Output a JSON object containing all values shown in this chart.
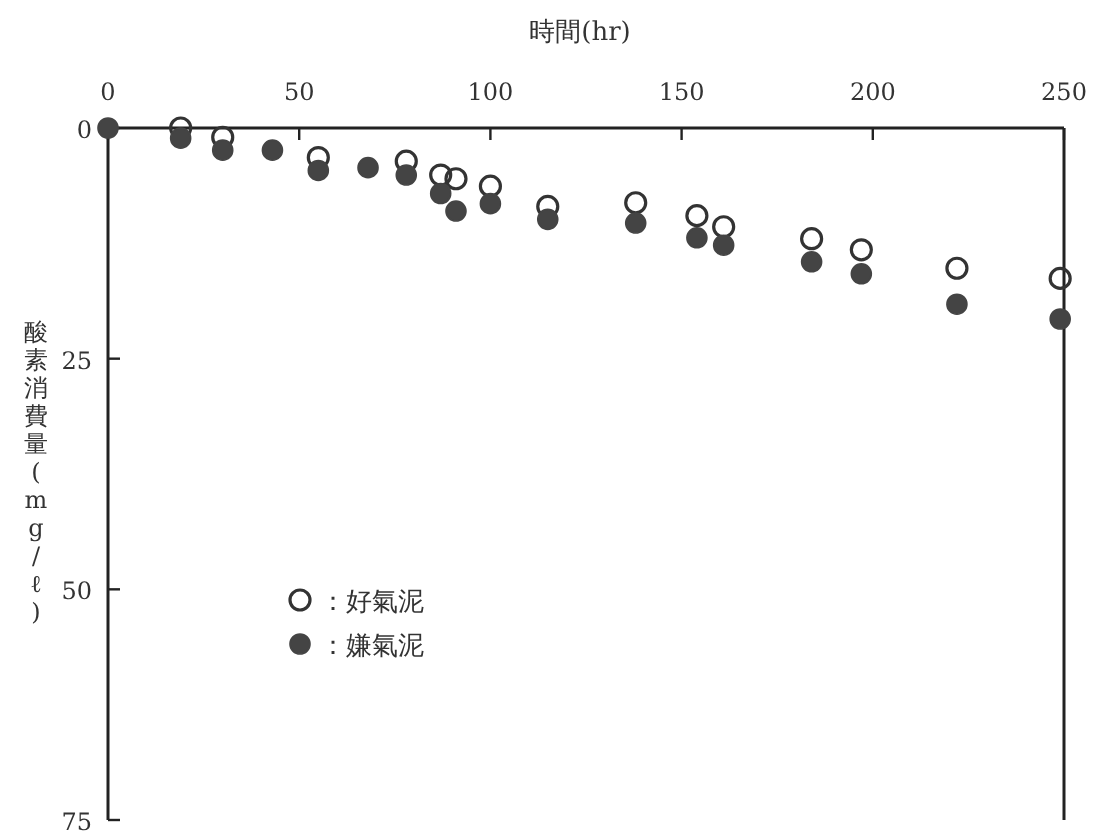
{
  "chart_data": {
    "type": "scatter",
    "xlabel": "時間(hr)",
    "ylabel": "酸素消費量(mg/ℓ)",
    "x": [
      0,
      19,
      30,
      43,
      55,
      68,
      78,
      87,
      91,
      100,
      115,
      138,
      154,
      161,
      184,
      197,
      222,
      249
    ],
    "series": [
      {
        "name": "：好氣泥",
        "color": "#333333",
        "values": [
          null,
          0,
          1.0,
          null,
          3.2,
          null,
          3.6,
          5.1,
          5.5,
          6.3,
          8.5,
          8.1,
          9.5,
          10.7,
          12.0,
          13.2,
          15.2,
          16.3
        ]
      },
      {
        "name": "：嫌氣泥",
        "color": "#444444",
        "values": [
          0,
          1.1,
          2.4,
          2.4,
          4.6,
          4.3,
          5.1,
          7.1,
          9.0,
          8.2,
          9.9,
          10.3,
          11.9,
          12.7,
          14.5,
          15.8,
          19.1,
          20.7
        ]
      }
    ],
    "xlim": [
      0,
      250
    ],
    "xticks": [
      0,
      50,
      100,
      150,
      200,
      250
    ],
    "ylim": [
      75,
      0
    ],
    "yticks": [
      0,
      25,
      50,
      75
    ],
    "marker": "circle",
    "grid": false,
    "legend": "bottom left"
  }
}
